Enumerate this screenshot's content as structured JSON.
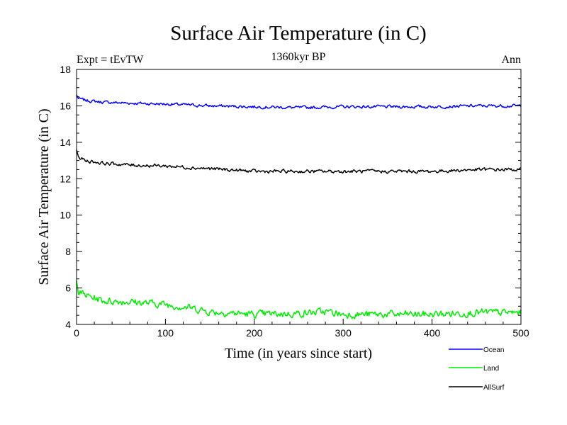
{
  "chart_data": {
    "type": "line",
    "title": "Surface Air Temperature (in C)",
    "subtitle": "1360kyr BP",
    "expt_label": "Expt = tEvTW",
    "season_label": "Ann",
    "xlabel": "Time (in years since start)",
    "ylabel": "Surface Air Temperature (in C)",
    "xlim": [
      0,
      500
    ],
    "ylim": [
      4,
      18
    ],
    "xticks": [
      0,
      100,
      200,
      300,
      400,
      500
    ],
    "yticks": [
      4,
      6,
      8,
      10,
      12,
      14,
      16,
      18
    ],
    "grid": false,
    "legend_position": "bottom-right",
    "noise_seed": 7,
    "series": [
      {
        "name": "Ocean",
        "color": "#0000ff",
        "noise": 0.07,
        "points": [
          [
            0,
            16.6
          ],
          [
            2,
            16.4
          ],
          [
            10,
            16.3
          ],
          [
            30,
            16.2
          ],
          [
            60,
            16.15
          ],
          [
            100,
            16.1
          ],
          [
            150,
            16.0
          ],
          [
            200,
            15.95
          ],
          [
            250,
            15.9
          ],
          [
            300,
            15.95
          ],
          [
            350,
            15.95
          ],
          [
            400,
            15.95
          ],
          [
            450,
            16.0
          ],
          [
            500,
            16.0
          ]
        ]
      },
      {
        "name": "Land",
        "color": "#00ee00",
        "noise": 0.17,
        "points": [
          [
            0,
            6.4
          ],
          [
            2,
            5.8
          ],
          [
            10,
            5.6
          ],
          [
            30,
            5.3
          ],
          [
            60,
            5.25
          ],
          [
            100,
            5.1
          ],
          [
            130,
            4.9
          ],
          [
            150,
            4.7
          ],
          [
            200,
            4.55
          ],
          [
            250,
            4.6
          ],
          [
            280,
            4.7
          ],
          [
            300,
            4.55
          ],
          [
            350,
            4.55
          ],
          [
            400,
            4.55
          ],
          [
            450,
            4.65
          ],
          [
            500,
            4.65
          ]
        ]
      },
      {
        "name": "AllSurf",
        "color": "#000000",
        "noise": 0.08,
        "points": [
          [
            0,
            13.6
          ],
          [
            2,
            13.2
          ],
          [
            10,
            13.0
          ],
          [
            30,
            12.85
          ],
          [
            60,
            12.75
          ],
          [
            100,
            12.7
          ],
          [
            150,
            12.55
          ],
          [
            200,
            12.4
          ],
          [
            250,
            12.4
          ],
          [
            300,
            12.4
          ],
          [
            350,
            12.4
          ],
          [
            400,
            12.4
          ],
          [
            450,
            12.5
          ],
          [
            500,
            12.5
          ]
        ]
      }
    ]
  }
}
